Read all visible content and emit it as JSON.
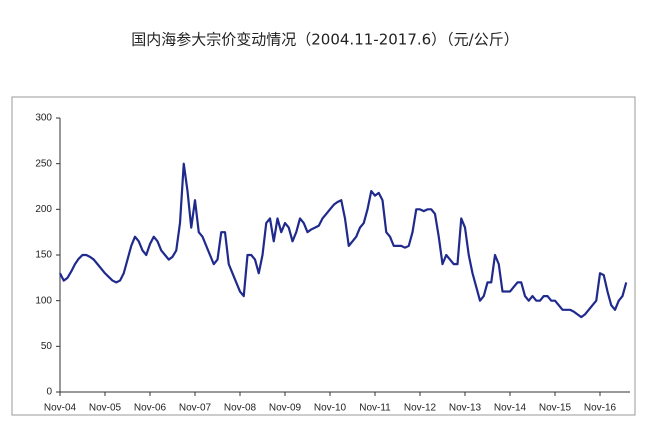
{
  "chart_data": {
    "type": "line",
    "title": "国内海参大宗价变动情况（2004.11-2017.6）（元/公斤）",
    "categories": [
      "Nov-04",
      null,
      null,
      null,
      null,
      null,
      null,
      null,
      null,
      null,
      null,
      null,
      "Nov-05",
      null,
      null,
      null,
      null,
      null,
      null,
      null,
      null,
      null,
      null,
      null,
      "Nov-06",
      null,
      null,
      null,
      null,
      null,
      null,
      null,
      null,
      null,
      null,
      null,
      "Nov-07",
      null,
      null,
      null,
      null,
      null,
      null,
      null,
      null,
      null,
      null,
      null,
      "Nov-08",
      null,
      null,
      null,
      null,
      null,
      null,
      null,
      null,
      null,
      null,
      null,
      "Nov-09",
      null,
      null,
      null,
      null,
      null,
      null,
      null,
      null,
      null,
      null,
      null,
      "Nov-10",
      null,
      null,
      null,
      null,
      null,
      null,
      null,
      null,
      null,
      null,
      null,
      "Nov-11",
      null,
      null,
      null,
      null,
      null,
      null,
      null,
      null,
      null,
      null,
      null,
      "Nov-12",
      null,
      null,
      null,
      null,
      null,
      null,
      null,
      null,
      null,
      null,
      null,
      "Nov-13",
      null,
      null,
      null,
      null,
      null,
      null,
      null,
      null,
      null,
      null,
      null,
      "Nov-14",
      null,
      null,
      null,
      null,
      null,
      null,
      null,
      null,
      null,
      null,
      null,
      "Nov-15",
      null,
      null,
      null,
      null,
      null,
      null,
      null,
      null,
      null,
      null,
      null,
      "Nov-16",
      null,
      null,
      null,
      null,
      null,
      null,
      null
    ],
    "values": [
      130,
      122,
      125,
      132,
      140,
      146,
      150,
      150,
      148,
      145,
      140,
      135,
      130,
      126,
      122,
      120,
      122,
      130,
      145,
      160,
      170,
      165,
      155,
      150,
      162,
      170,
      165,
      155,
      150,
      145,
      148,
      155,
      185,
      250,
      220,
      180,
      210,
      175,
      170,
      160,
      150,
      140,
      145,
      175,
      175,
      140,
      130,
      120,
      110,
      105,
      150,
      150,
      145,
      130,
      150,
      185,
      190,
      165,
      190,
      175,
      185,
      180,
      165,
      175,
      190,
      185,
      175,
      178,
      180,
      182,
      190,
      195,
      200,
      205,
      208,
      210,
      190,
      160,
      165,
      170,
      180,
      185,
      200,
      220,
      215,
      218,
      210,
      175,
      170,
      160,
      160,
      160,
      158,
      160,
      175,
      200,
      200,
      198,
      200,
      200,
      195,
      170,
      140,
      150,
      145,
      140,
      140,
      190,
      180,
      150,
      130,
      115,
      100,
      105,
      120,
      120,
      150,
      140,
      110,
      110,
      110,
      115,
      120,
      120,
      105,
      100,
      105,
      100,
      100,
      105,
      105,
      100,
      100,
      95,
      90,
      90,
      90,
      88,
      85,
      82,
      85,
      90,
      95,
      100,
      130,
      128,
      110,
      95,
      90,
      100,
      105,
      120
    ],
    "color": "#1f2a8c",
    "ylim": [
      0,
      300
    ],
    "yticks": [
      0,
      50,
      100,
      150,
      200,
      250,
      300
    ]
  }
}
